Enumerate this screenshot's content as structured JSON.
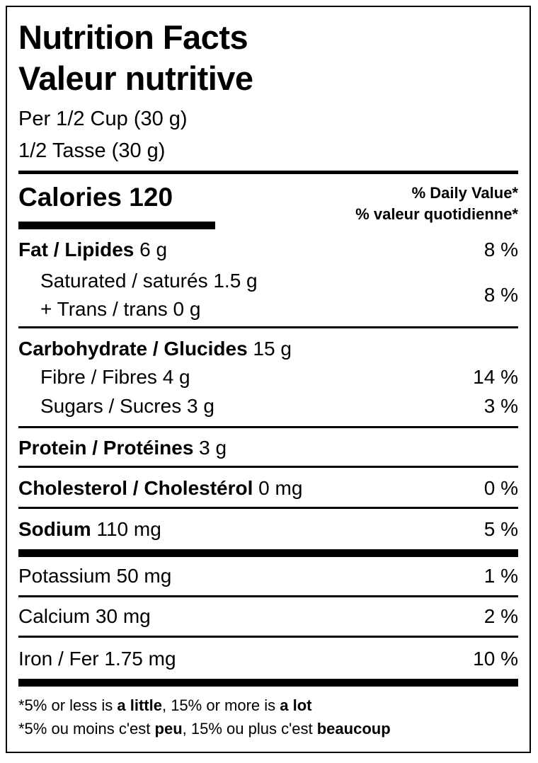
{
  "title_en": "Nutrition Facts",
  "title_fr": "Valeur nutritive",
  "serving_en": "Per 1/2 Cup (30 g)",
  "serving_fr": "1/2 Tasse (30 g)",
  "calories_label": "Calories 120",
  "dv_en": "% Daily Value*",
  "dv_fr": "% valeur quotidienne*",
  "fat": {
    "label": "Fat / Lipides",
    "amount": " 6 g",
    "dv": "8 %"
  },
  "saturated": {
    "label": "Saturated / saturés 1.5 g"
  },
  "trans": {
    "label": "+ Trans / trans 0 g"
  },
  "sat_trans_dv": "8 %",
  "carb": {
    "label": "Carbohydrate / Glucides",
    "amount": " 15 g"
  },
  "fibre": {
    "label": "Fibre / Fibres 4 g",
    "dv": "14 %"
  },
  "sugars": {
    "label": "Sugars / Sucres 3 g",
    "dv": "3 %"
  },
  "protein": {
    "label": "Protein / Protéines",
    "amount": " 3 g"
  },
  "cholesterol": {
    "label": "Cholesterol / Cholestérol",
    "amount": " 0 mg",
    "dv": "0 %"
  },
  "sodium": {
    "label": "Sodium",
    "amount": " 110 mg",
    "dv": "5 %"
  },
  "potassium": {
    "label": "Potassium 50 mg",
    "dv": "1 %"
  },
  "calcium": {
    "label": "Calcium 30 mg",
    "dv": "2 %"
  },
  "iron": {
    "label": "Iron / Fer 1.75 mg",
    "dv": "10 %"
  },
  "footnote_en": {
    "a": "*5% or less is ",
    "b": "a little",
    "c": ", 15% or more is ",
    "d": "a lot"
  },
  "footnote_fr": {
    "a": "*5% ou moins c'est ",
    "b": "peu",
    "c": ", 15% ou plus c'est ",
    "d": "beaucoup"
  }
}
